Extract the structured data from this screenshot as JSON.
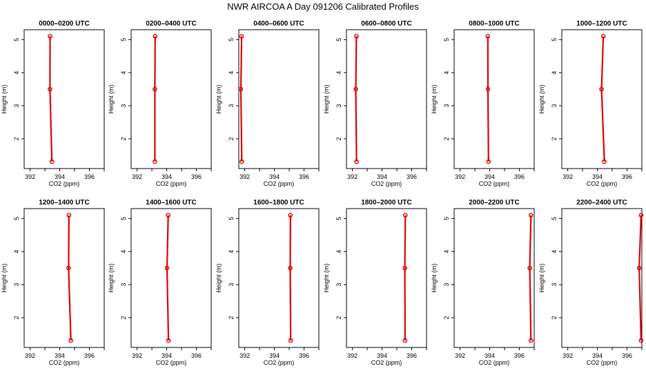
{
  "title": "NWR AIRCOA A  Day 091206  Calibrated Profiles",
  "colors": {
    "profile": "#dd0000",
    "axis": "#000000",
    "background": "#ffffff"
  },
  "chart_data": [
    {
      "type": "line",
      "title": "0000–0200 UTC",
      "xlabel": "CO2 (ppm)",
      "ylabel": "Height (m)",
      "xlim": [
        391.6,
        397.0
      ],
      "ylim": [
        1.1,
        5.3
      ],
      "xticks": [
        392,
        394,
        396
      ],
      "yticks": [
        2,
        3,
        4,
        5
      ],
      "points": [
        {
          "x": 393.47,
          "y": 1.31
        },
        {
          "x": 393.34,
          "y": 3.5
        },
        {
          "x": 393.35,
          "y": 5.1
        }
      ]
    },
    {
      "type": "line",
      "title": "0200–0400 UTC",
      "xlabel": "CO2 (ppm)",
      "ylabel": "Height (m)",
      "xlim": [
        391.6,
        397.0
      ],
      "ylim": [
        1.1,
        5.3
      ],
      "xticks": [
        392,
        394,
        396
      ],
      "yticks": [
        2,
        3,
        4,
        5
      ],
      "points": [
        {
          "x": 393.2,
          "y": 1.31
        },
        {
          "x": 393.2,
          "y": 3.5
        },
        {
          "x": 393.22,
          "y": 5.1
        }
      ]
    },
    {
      "type": "line",
      "title": "0400–0600 UTC",
      "xlabel": "CO2 (ppm)",
      "ylabel": "Height (m)",
      "xlim": [
        391.6,
        397.0
      ],
      "ylim": [
        1.1,
        5.3
      ],
      "xticks": [
        392,
        394,
        396
      ],
      "yticks": [
        2,
        3,
        4,
        5
      ],
      "points": [
        {
          "x": 391.8,
          "y": 1.31
        },
        {
          "x": 391.74,
          "y": 3.5
        },
        {
          "x": 391.79,
          "y": 5.1
        }
      ]
    },
    {
      "type": "line",
      "title": "0600–0800 UTC",
      "xlabel": "CO2 (ppm)",
      "ylabel": "Height (m)",
      "xlim": [
        391.6,
        397.0
      ],
      "ylim": [
        1.1,
        5.3
      ],
      "xticks": [
        392,
        394,
        396
      ],
      "yticks": [
        2,
        3,
        4,
        5
      ],
      "points": [
        {
          "x": 392.28,
          "y": 1.31
        },
        {
          "x": 392.23,
          "y": 3.5
        },
        {
          "x": 392.27,
          "y": 5.1
        }
      ]
    },
    {
      "type": "line",
      "title": "0800–1000 UTC",
      "xlabel": "CO2 (ppm)",
      "ylabel": "Height (m)",
      "xlim": [
        391.6,
        397.0
      ],
      "ylim": [
        1.1,
        5.3
      ],
      "xticks": [
        392,
        394,
        396
      ],
      "yticks": [
        2,
        3,
        4,
        5
      ],
      "points": [
        {
          "x": 393.92,
          "y": 1.31
        },
        {
          "x": 393.88,
          "y": 3.5
        },
        {
          "x": 393.87,
          "y": 5.1
        }
      ]
    },
    {
      "type": "line",
      "title": "1000–1200 UTC",
      "xlabel": "CO2 (ppm)",
      "ylabel": "Height (m)",
      "xlim": [
        391.6,
        397.0
      ],
      "ylim": [
        1.1,
        5.3
      ],
      "xticks": [
        392,
        394,
        396
      ],
      "yticks": [
        2,
        3,
        4,
        5
      ],
      "points": [
        {
          "x": 394.47,
          "y": 1.31
        },
        {
          "x": 394.28,
          "y": 3.5
        },
        {
          "x": 394.4,
          "y": 5.1
        }
      ]
    },
    {
      "type": "line",
      "title": "1200–1400 UTC",
      "xlabel": "CO2 (ppm)",
      "ylabel": "Height (m)",
      "xlim": [
        391.6,
        397.0
      ],
      "ylim": [
        1.1,
        5.3
      ],
      "xticks": [
        392,
        394,
        396
      ],
      "yticks": [
        2,
        3,
        4,
        5
      ],
      "points": [
        {
          "x": 394.75,
          "y": 1.31
        },
        {
          "x": 394.6,
          "y": 3.5
        },
        {
          "x": 394.62,
          "y": 5.1
        }
      ]
    },
    {
      "type": "line",
      "title": "1400–1600 UTC",
      "xlabel": "CO2 (ppm)",
      "ylabel": "Height (m)",
      "xlim": [
        391.6,
        397.0
      ],
      "ylim": [
        1.1,
        5.3
      ],
      "xticks": [
        392,
        394,
        396
      ],
      "yticks": [
        2,
        3,
        4,
        5
      ],
      "points": [
        {
          "x": 394.12,
          "y": 1.31
        },
        {
          "x": 394.02,
          "y": 3.5
        },
        {
          "x": 394.1,
          "y": 5.1
        }
      ]
    },
    {
      "type": "line",
      "title": "1600–1800 UTC",
      "xlabel": "CO2 (ppm)",
      "ylabel": "Height (m)",
      "xlim": [
        391.6,
        397.0
      ],
      "ylim": [
        1.1,
        5.3
      ],
      "xticks": [
        392,
        394,
        396
      ],
      "yticks": [
        2,
        3,
        4,
        5
      ],
      "points": [
        {
          "x": 395.1,
          "y": 1.31
        },
        {
          "x": 395.07,
          "y": 3.5
        },
        {
          "x": 395.08,
          "y": 5.1
        }
      ]
    },
    {
      "type": "line",
      "title": "1800–2000 UTC",
      "xlabel": "CO2 (ppm)",
      "ylabel": "Height (m)",
      "xlim": [
        391.6,
        397.0
      ],
      "ylim": [
        1.1,
        5.3
      ],
      "xticks": [
        392,
        394,
        396
      ],
      "yticks": [
        2,
        3,
        4,
        5
      ],
      "points": [
        {
          "x": 395.55,
          "y": 1.31
        },
        {
          "x": 395.54,
          "y": 3.5
        },
        {
          "x": 395.57,
          "y": 5.1
        }
      ]
    },
    {
      "type": "line",
      "title": "2000–2200 UTC",
      "xlabel": "CO2 (ppm)",
      "ylabel": "Height (m)",
      "xlim": [
        391.6,
        397.0
      ],
      "ylim": [
        1.1,
        5.3
      ],
      "xticks": [
        392,
        394,
        396
      ],
      "yticks": [
        2,
        3,
        4,
        5
      ],
      "points": [
        {
          "x": 396.78,
          "y": 1.31
        },
        {
          "x": 396.7,
          "y": 3.5
        },
        {
          "x": 396.78,
          "y": 5.1
        }
      ]
    },
    {
      "type": "line",
      "title": "2200–2400 UTC",
      "xlabel": "CO2 (ppm)",
      "ylabel": "Height (m)",
      "xlim": [
        391.6,
        397.0
      ],
      "ylim": [
        1.1,
        5.3
      ],
      "xticks": [
        392,
        394,
        396
      ],
      "yticks": [
        2,
        3,
        4,
        5
      ],
      "points": [
        {
          "x": 396.95,
          "y": 1.31
        },
        {
          "x": 396.82,
          "y": 3.5
        },
        {
          "x": 396.95,
          "y": 5.1
        }
      ]
    }
  ]
}
